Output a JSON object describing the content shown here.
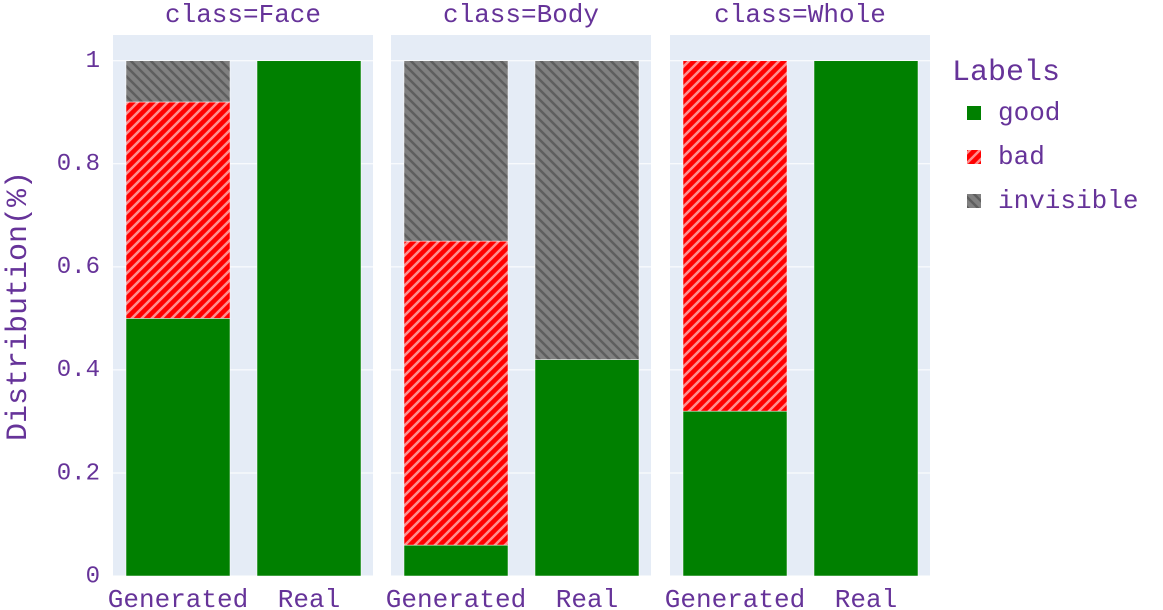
{
  "chart_data": {
    "type": "bar",
    "stacked": true,
    "y_label": "Distribution(%)",
    "legend_title": "Labels",
    "ylim": [
      0,
      1.05
    ],
    "yticks": [
      0,
      0.2,
      0.4,
      0.6,
      0.8,
      1
    ],
    "grid": true,
    "series": [
      {
        "name": "good",
        "color": "#008000",
        "pattern": ""
      },
      {
        "name": "bad",
        "color": "#ff0000",
        "pattern": "/"
      },
      {
        "name": "invisible",
        "color": "#808080",
        "pattern": "\\"
      }
    ],
    "facets": [
      {
        "title": "class=Face",
        "categories": [
          "Generated",
          "Real"
        ],
        "values": [
          [
            0.5,
            1
          ],
          [
            0.42,
            0
          ],
          [
            0.08,
            0
          ]
        ]
      },
      {
        "title": "class=Body",
        "categories": [
          "Generated",
          "Real"
        ],
        "values": [
          [
            0.06,
            0.42
          ],
          [
            0.59,
            0
          ],
          [
            0.35,
            0.58
          ]
        ]
      },
      {
        "title": "class=Whole",
        "categories": [
          "Generated",
          "Real"
        ],
        "values": [
          [
            0.32,
            1
          ],
          [
            0.68,
            0
          ],
          [
            0,
            0
          ]
        ]
      }
    ]
  }
}
